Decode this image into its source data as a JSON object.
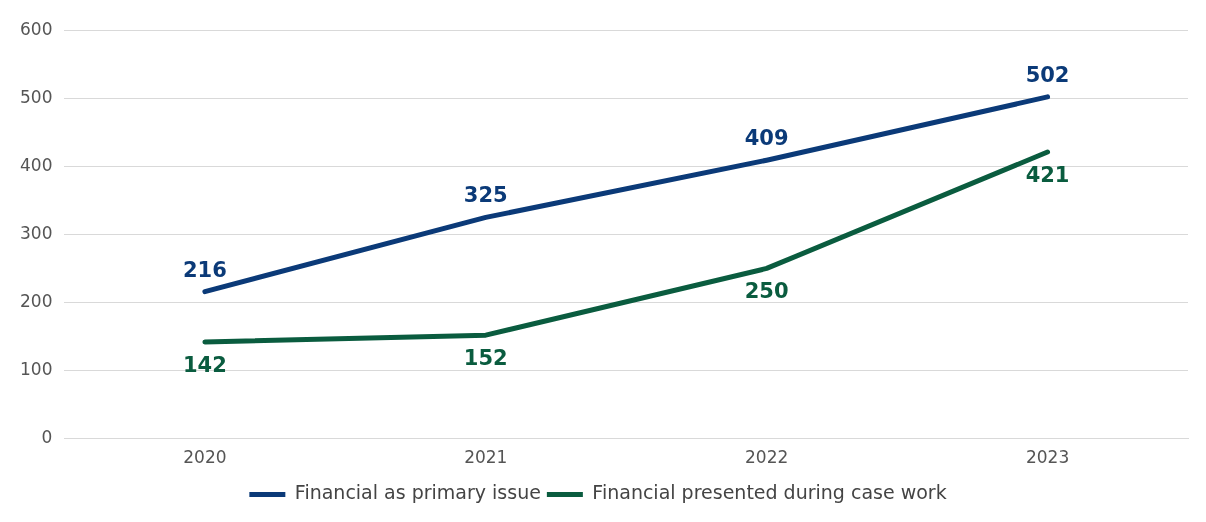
{
  "chart_data": {
    "type": "line",
    "categories": [
      "2020",
      "2021",
      "2022",
      "2023"
    ],
    "series": [
      {
        "name": "Financial as primary issue",
        "color": "#0b3a78",
        "values": [
          216,
          325,
          409,
          502
        ]
      },
      {
        "name": "Financial presented during case work",
        "color": "#0a5c3f",
        "values": [
          142,
          152,
          250,
          421
        ]
      }
    ],
    "ylim": [
      0,
      600
    ],
    "yticks": [
      0,
      100,
      200,
      300,
      400,
      500,
      600
    ],
    "grid": "y",
    "legend": "bottom",
    "data_labels": true,
    "marker": "none",
    "line_style": "solid"
  }
}
